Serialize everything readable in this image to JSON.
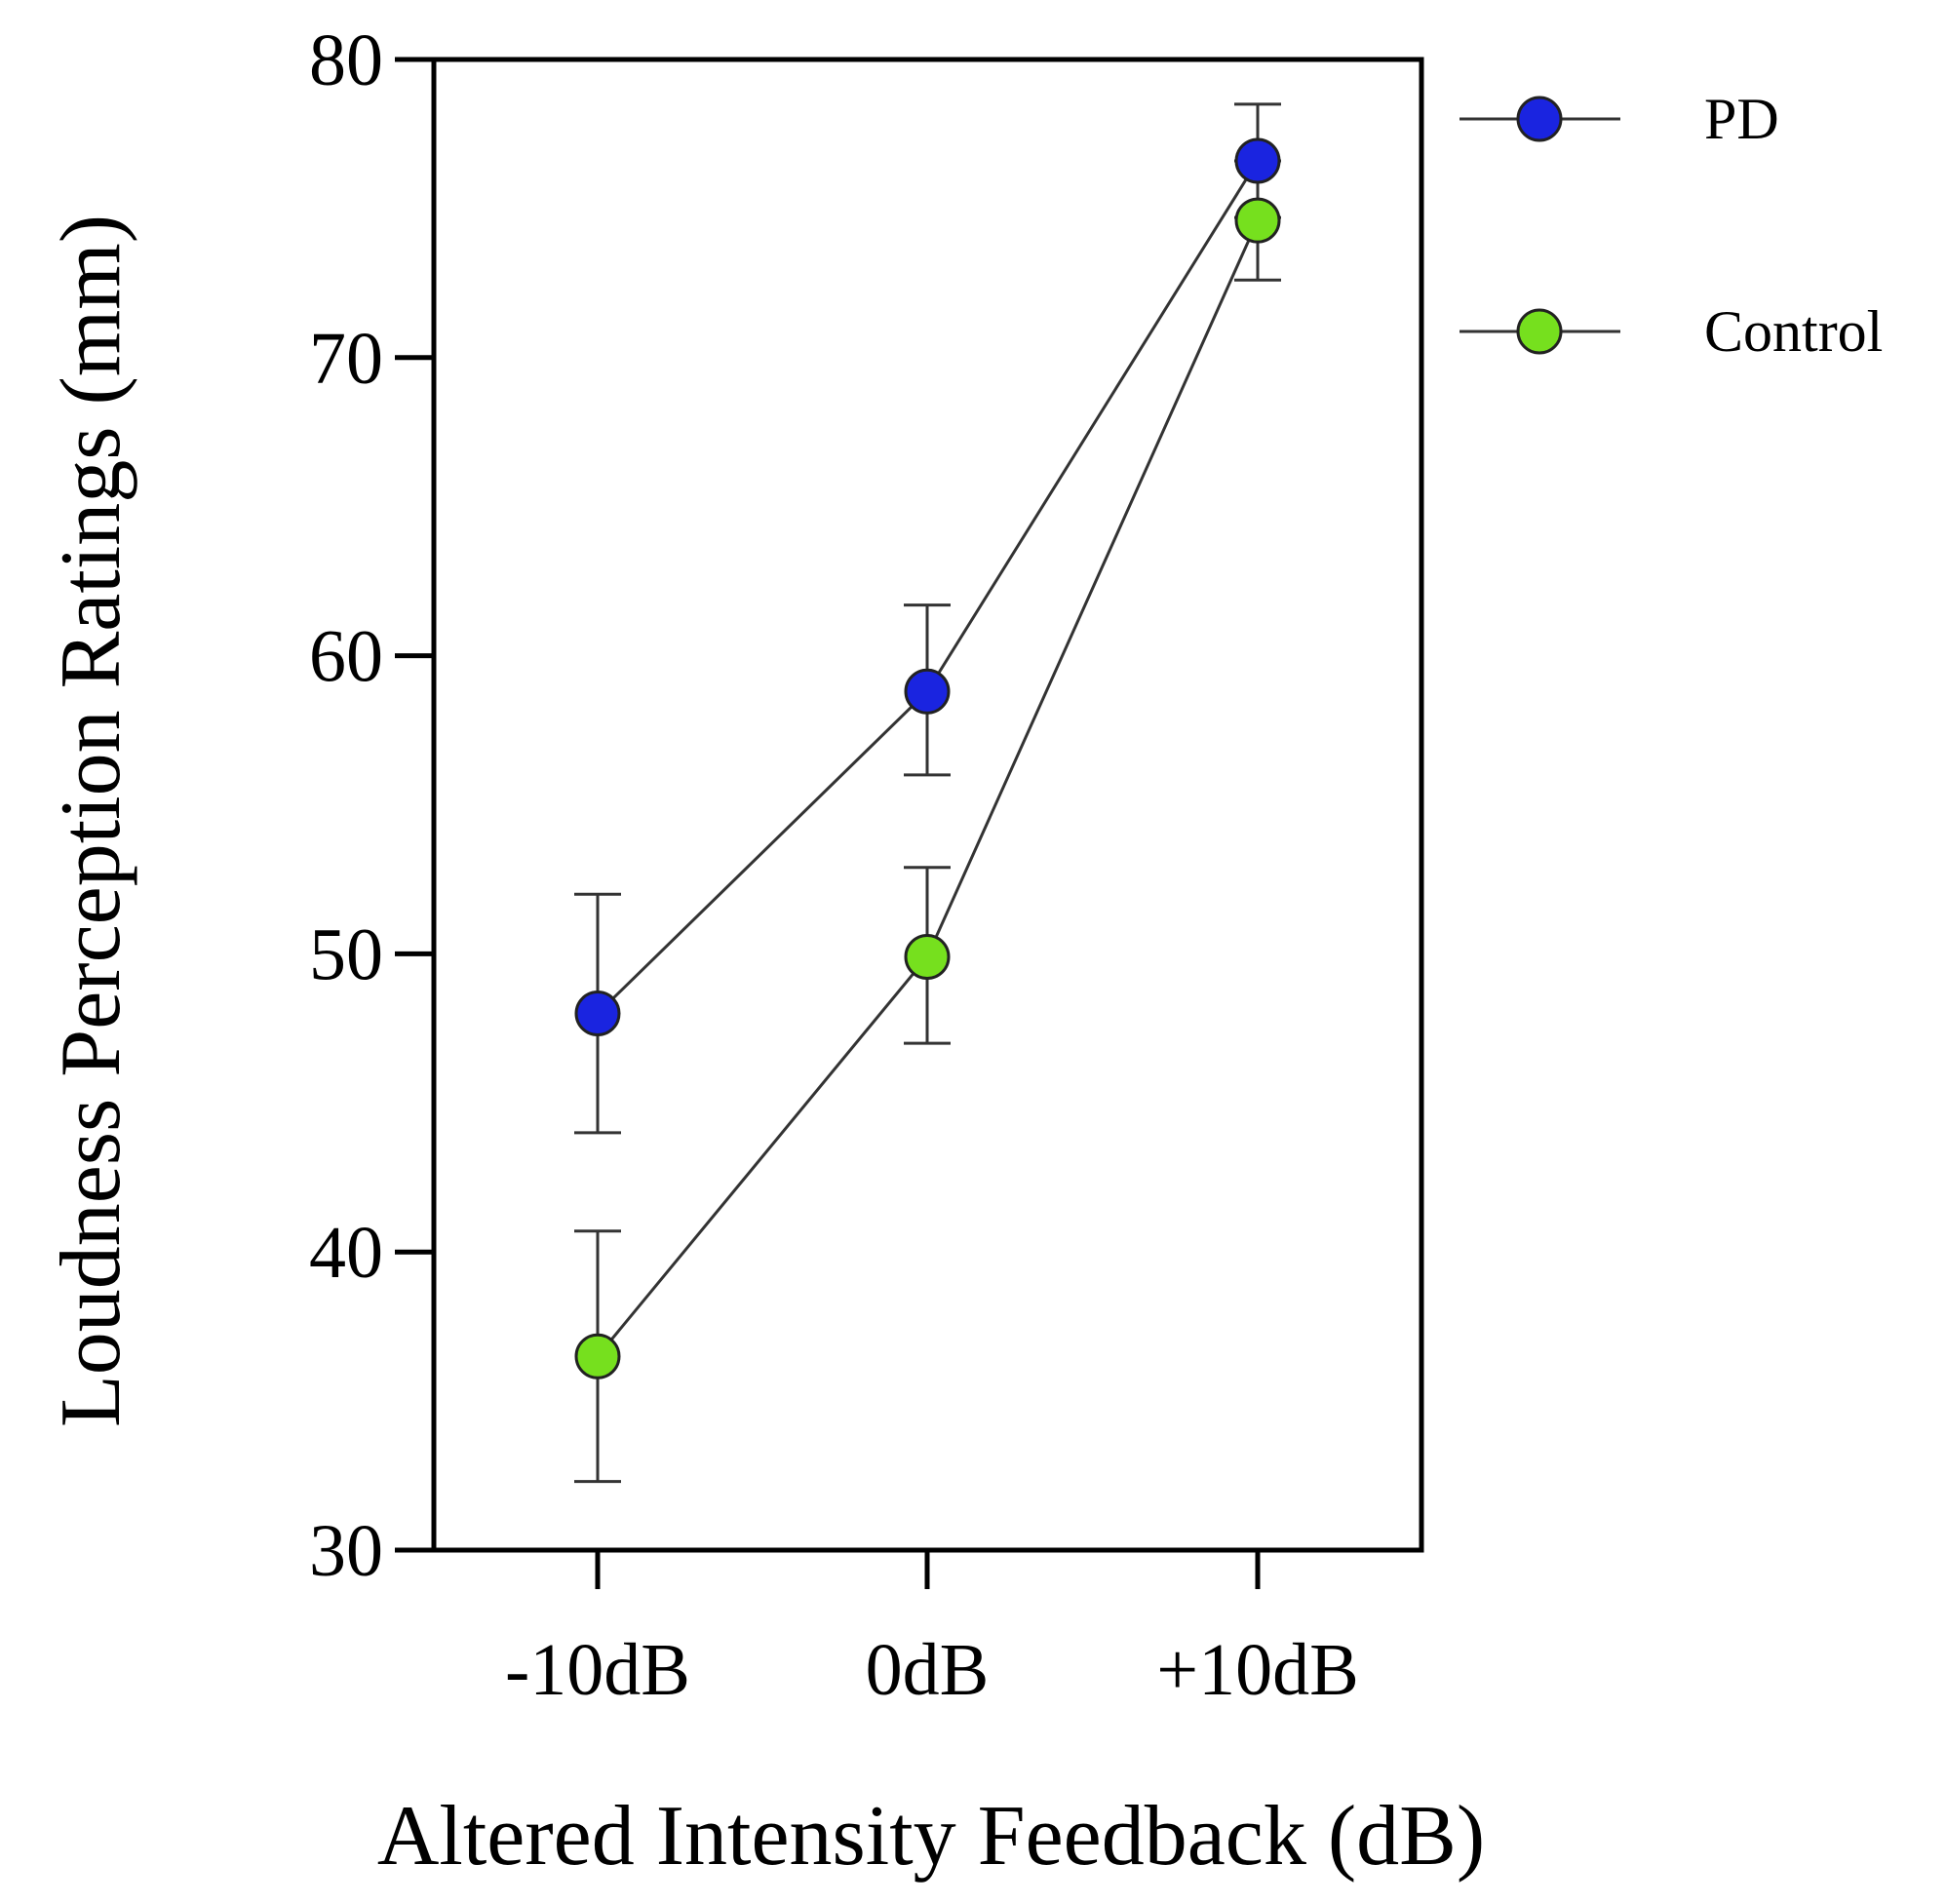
{
  "chart_data": {
    "type": "line",
    "title": "",
    "xlabel": "Altered Intensity Feedback (dB)",
    "ylabel": "Loudness Perception Ratings (mm)",
    "categories": [
      "-10dB",
      "0dB",
      "+10dB"
    ],
    "ylim": [
      30,
      80
    ],
    "yticks": [
      "30",
      "40",
      "50",
      "60",
      "70",
      "80"
    ],
    "grid": false,
    "legend_position": "right",
    "series": [
      {
        "name": "PD",
        "color": "#1a24e0",
        "values": [
          48,
          58.8,
          76.6
        ],
        "err_low": [
          44,
          56,
          74.7
        ],
        "err_high": [
          52,
          61.7,
          78.5
        ]
      },
      {
        "name": "Control",
        "color": "#76e01e",
        "values": [
          36.5,
          49.9,
          74.6
        ],
        "err_low": [
          32.3,
          47,
          72.6
        ],
        "err_high": [
          40.7,
          52.9,
          76.6
        ]
      }
    ]
  }
}
